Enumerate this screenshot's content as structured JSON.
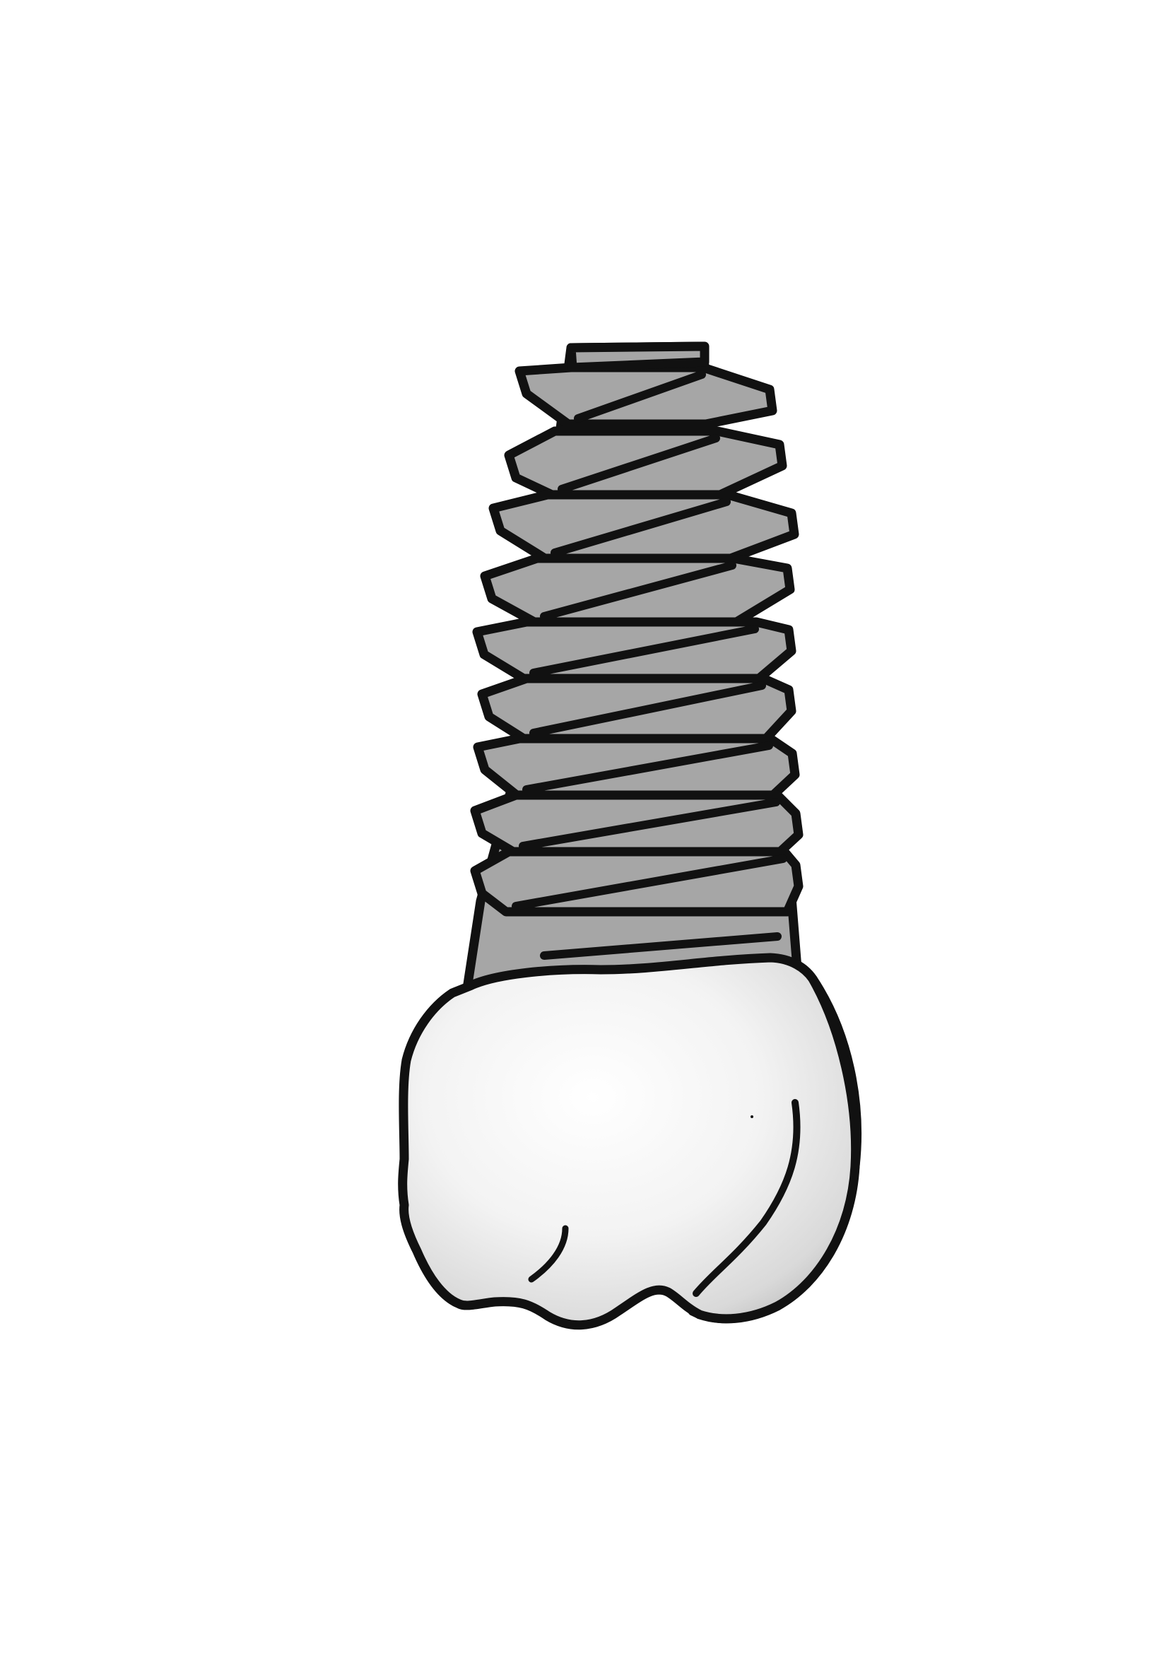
{
  "illustration": {
    "subject": "dental-implant",
    "parts": [
      "implant-screw",
      "crown"
    ],
    "colors": {
      "background": "#ffffff",
      "outline": "#111111",
      "screw_fill": "#a6a6a6",
      "crown_light": "#ffffff",
      "crown_mid": "#e6e6e6",
      "crown_shadow": "#8c8c8c"
    }
  }
}
